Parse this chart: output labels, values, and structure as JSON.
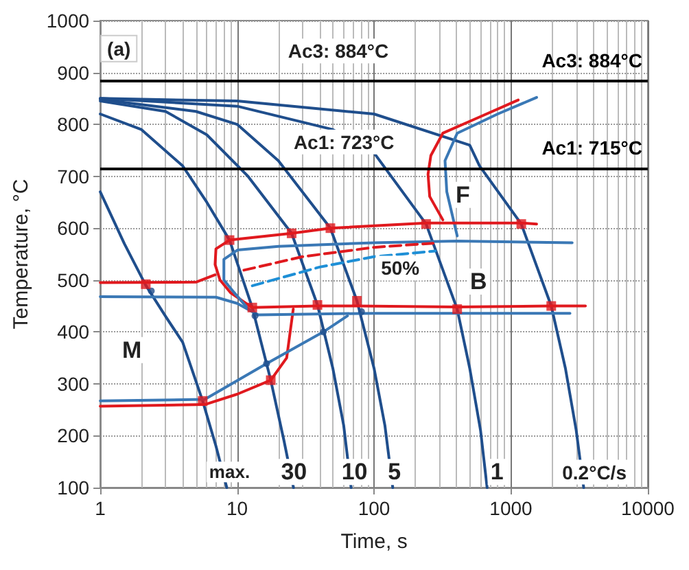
{
  "chart_data": {
    "type": "line",
    "xlabel": "Time, s",
    "ylabel": "Temperature, °C",
    "log": "x",
    "xlim": [
      1,
      10000
    ],
    "xticks": [
      1,
      10,
      100,
      1000,
      10000
    ],
    "ylim": [
      100,
      1000
    ],
    "yticks": [
      100,
      200,
      300,
      400,
      500,
      600,
      700,
      800,
      900,
      1000
    ],
    "grid": true,
    "legend": false,
    "marker": "none",
    "series": [
      {
        "color": "#1f4e8c",
        "x": [
          1,
          1.5,
          2.15,
          3,
          4,
          5.6,
          7,
          8.4
        ],
        "values": [
          670,
          570,
          490,
          430,
          380,
          267,
          180,
          100
        ]
      },
      {
        "color": "#1f4e8c",
        "x": [
          1,
          2,
          4,
          6,
          8.8,
          12.9,
          17.6,
          22,
          25.8
        ],
        "values": [
          820,
          790,
          720,
          650,
          577,
          447,
          307,
          190,
          100
        ]
      },
      {
        "color": "#1f4e8c",
        "x": [
          1,
          3,
          6,
          12,
          25,
          38.6,
          50,
          60,
          68
        ],
        "values": [
          845,
          825,
          780,
          700,
          590,
          452,
          330,
          220,
          100
        ]
      },
      {
        "color": "#1f4e8c",
        "x": [
          1,
          5,
          10,
          20,
          48,
          75,
          100,
          120,
          137
        ],
        "values": [
          848,
          825,
          800,
          730,
          600,
          460,
          330,
          220,
          100
        ]
      },
      {
        "color": "#1f4e8c",
        "x": [
          1,
          10,
          50,
          100,
          240,
          405,
          500,
          600,
          670
        ],
        "values": [
          850,
          835,
          790,
          745,
          608,
          444,
          330,
          210,
          100
        ]
      },
      {
        "color": "#1f4e8c",
        "x": [
          1,
          10,
          100,
          500,
          590,
          1190,
          1970,
          2500,
          3000,
          3400
        ],
        "values": [
          850,
          845,
          820,
          760,
          720,
          608,
          450,
          330,
          210,
          100
        ]
      },
      {
        "color": "#e0191e",
        "x": [
          1130,
          600,
          318,
          260,
          248,
          255,
          318
        ],
        "values": [
          847,
          815,
          783,
          740,
          704,
          661,
          616
        ]
      },
      {
        "color": "#3a78b5",
        "x": [
          1540,
          800,
          405,
          330,
          340,
          405
        ],
        "values": [
          852,
          820,
          783,
          730,
          670,
          585
        ]
      },
      {
        "color": "#e0191e",
        "x": [
          1540,
          1190,
          240,
          48,
          25,
          8.8,
          7,
          6.9,
          7.5,
          9,
          12.9,
          38.6,
          75,
          405,
          1970,
          3500
        ],
        "values": [
          608,
          610,
          610,
          600,
          590,
          577,
          560,
          530,
          500,
          475,
          447,
          450,
          450,
          448,
          450,
          450
        ]
      },
      {
        "color": "#e0191e",
        "x": [
          1,
          5,
          6.9
        ],
        "values": [
          495,
          496,
          510
        ]
      },
      {
        "color": "#e0191e",
        "x": [
          1,
          5.8,
          10,
          17.6,
          23,
          25.7
        ],
        "values": [
          257,
          260,
          280,
          307,
          350,
          444
        ]
      },
      {
        "color": "#3a78b5",
        "x": [
          2800,
          405,
          100,
          20,
          10.1,
          8,
          8,
          9.5,
          12,
          14.2,
          100,
          2700
        ],
        "values": [
          572,
          575,
          572,
          565,
          558,
          540,
          500,
          476,
          445,
          433,
          436,
          436
        ]
      },
      {
        "color": "#3a78b5",
        "x": [
          1,
          7,
          10,
          14.2
        ],
        "values": [
          468,
          467,
          455,
          433
        ]
      },
      {
        "color": "#3a78b5",
        "x": [
          1,
          5.8,
          16.4,
          42.6,
          64
        ],
        "values": [
          267,
          270,
          339,
          400,
          431
        ]
      },
      {
        "color": "#e0191e",
        "line_style": "dashed",
        "x": [
          11.2,
          30,
          100,
          270
        ],
        "values": [
          519,
          545,
          563,
          571
        ]
      },
      {
        "color": "#1e8fd6",
        "line_style": "dashed",
        "x": [
          12.9,
          40,
          100,
          280
        ],
        "values": [
          489,
          525,
          545,
          556
        ]
      },
      {
        "type": "scatter",
        "marker": "circle",
        "color": "#1f4e8c",
        "x": [
          2.36,
          13.5,
          42.6,
          16.4,
          81
        ],
        "values": [
          479,
          431,
          400,
          339,
          439
        ]
      },
      {
        "type": "scatter",
        "marker": "square",
        "color": "#e0191e",
        "x": [
          8.8,
          25,
          48,
          240,
          1190,
          2.15,
          12.9,
          38.6,
          75,
          405,
          1970,
          5.6,
          17.6
        ],
        "values": [
          577,
          590,
          600,
          608,
          608,
          492,
          447,
          452,
          460,
          444,
          450,
          267,
          307
        ]
      }
    ],
    "ref_lines": [
      {
        "axis": "y",
        "value": 884,
        "label": "Ac3: 884°C",
        "color": "#000000"
      },
      {
        "axis": "y",
        "value": 715,
        "label": "Ac1: 715°C",
        "color": "#000000"
      }
    ],
    "annotations": [
      "(a)",
      "Ac3: 884°C",
      "Ac1: 723°C",
      {
        "text": "F",
        "x": 445,
        "y": 664
      },
      {
        "text": "B",
        "x": 580,
        "y": 497
      },
      {
        "text": "M",
        "x": 1.7,
        "y": 365
      },
      "50%",
      {
        "text": "max.",
        "x": 8.8,
        "y": 130
      },
      {
        "text": "30",
        "x": 26,
        "y": 130
      },
      {
        "text": "10",
        "x": 72,
        "y": 130
      },
      {
        "text": "5",
        "x": 141,
        "y": 130
      },
      {
        "text": "1",
        "x": 790,
        "y": 130
      },
      "0.2°C/s"
    ]
  }
}
